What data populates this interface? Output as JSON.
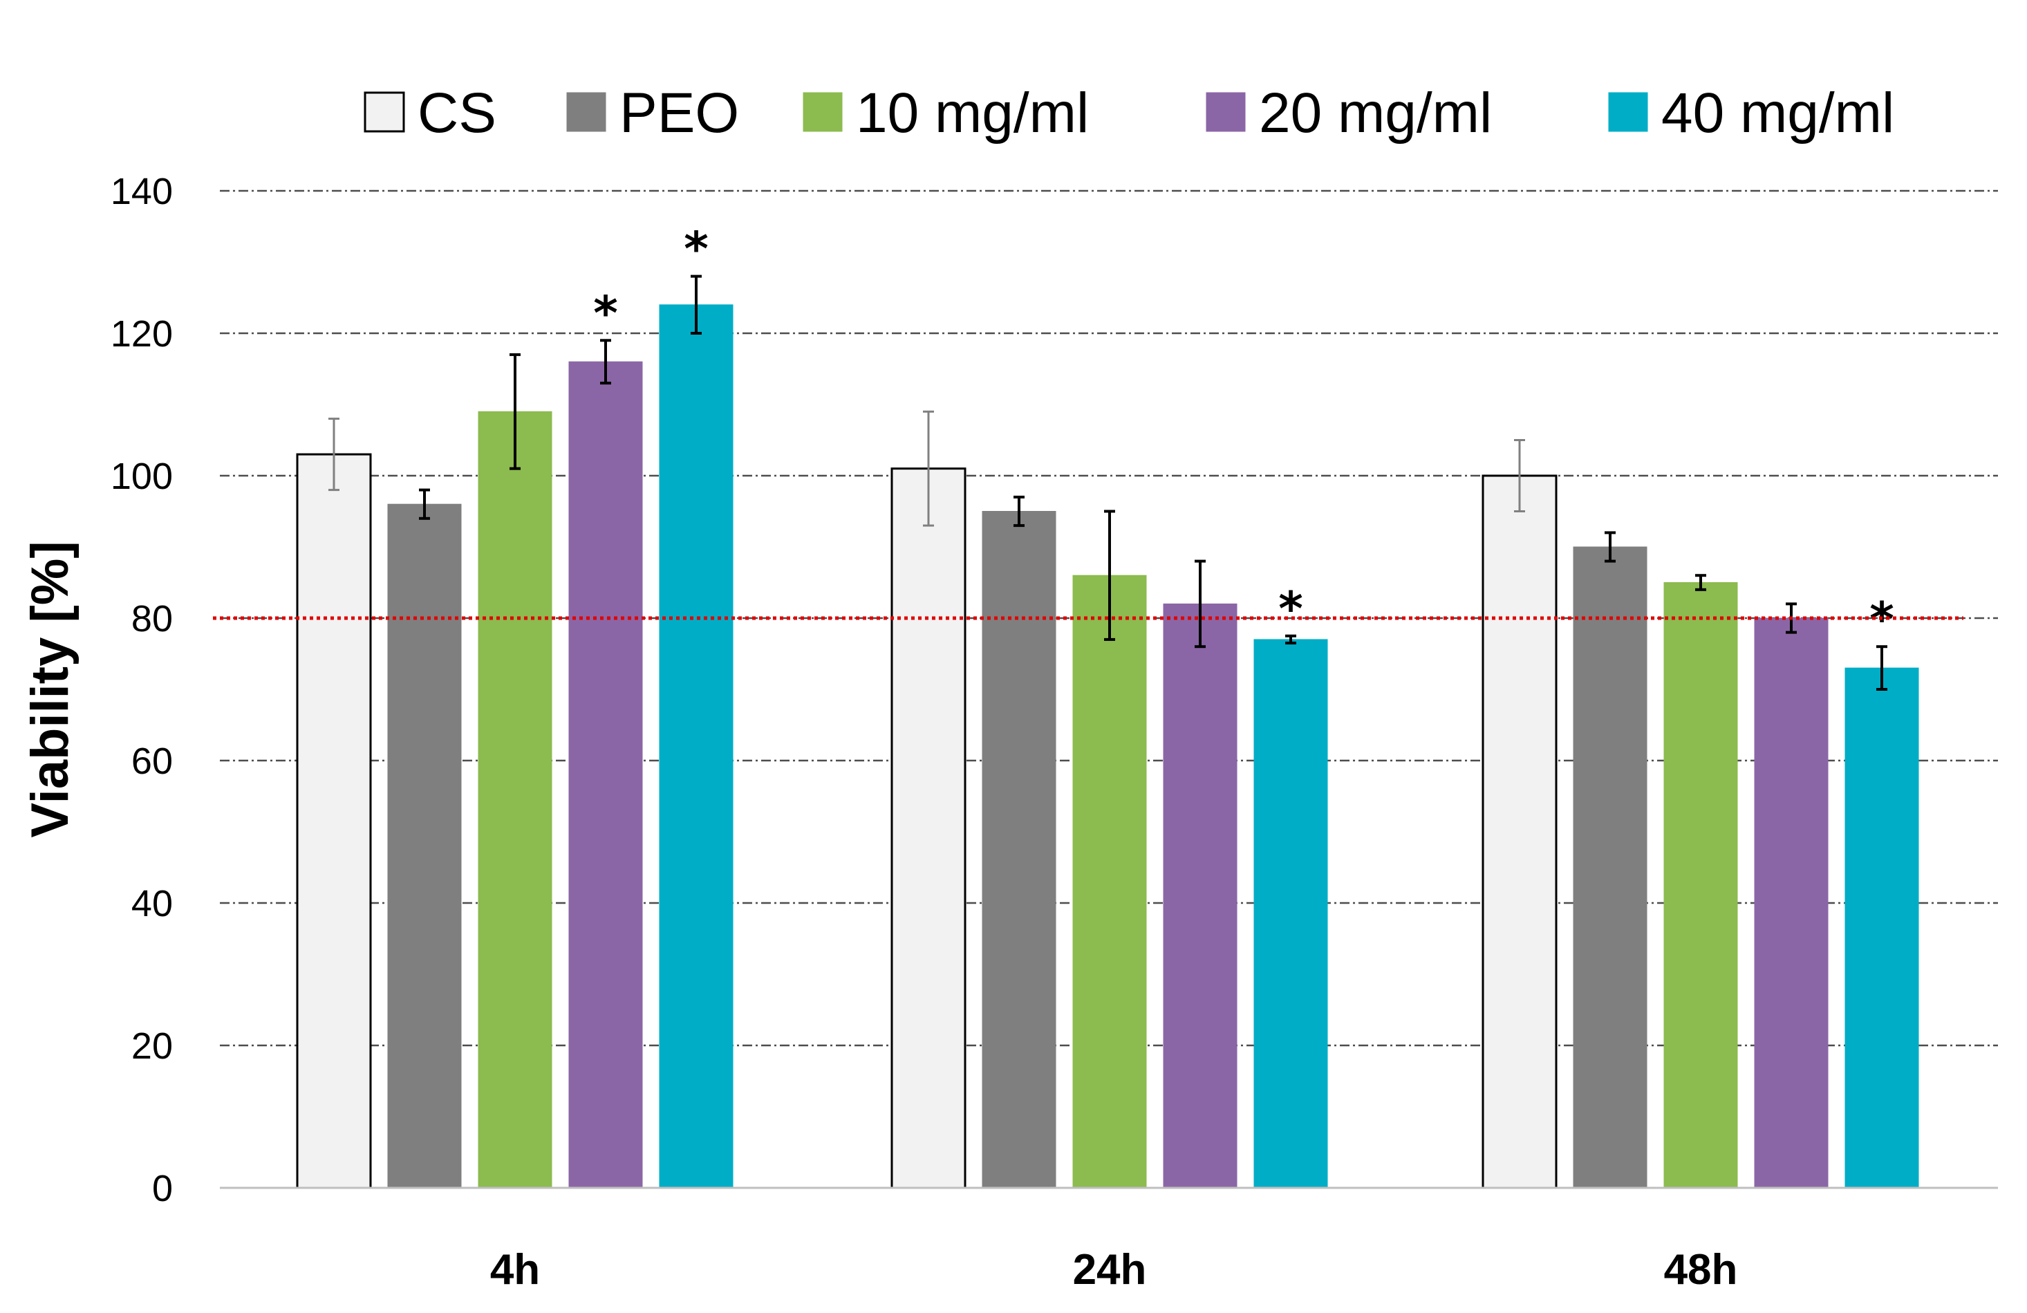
{
  "chart_data": {
    "type": "bar",
    "title": "",
    "xlabel": "",
    "ylabel": "Viability [%]",
    "ylim": [
      0,
      140
    ],
    "yticks": [
      0,
      20,
      40,
      60,
      80,
      100,
      120,
      140
    ],
    "grid": true,
    "legend_position": "top",
    "categories": [
      "4h",
      "24h",
      "48h"
    ],
    "series": [
      {
        "name": "CS",
        "color": "#f2f2f2",
        "edge": "#000000",
        "values": [
          103,
          101,
          100
        ],
        "errors": [
          5,
          8,
          5
        ],
        "significant": [
          false,
          false,
          false
        ]
      },
      {
        "name": "PEO",
        "color": "#7f7f7f",
        "edge": "#7f7f7f",
        "values": [
          96,
          95,
          90
        ],
        "errors": [
          2,
          2,
          2
        ],
        "significant": [
          false,
          false,
          false
        ]
      },
      {
        "name": "10 mg/ml",
        "color": "#8cbb4f",
        "edge": "#8cbb4f",
        "values": [
          109,
          86,
          85
        ],
        "errors": [
          8,
          9,
          1
        ],
        "significant": [
          false,
          false,
          false
        ]
      },
      {
        "name": "20 mg/ml",
        "color": "#8b66a6",
        "edge": "#8b66a6",
        "values": [
          116,
          82,
          80
        ],
        "errors": [
          3,
          6,
          2
        ],
        "significant": [
          true,
          false,
          false
        ]
      },
      {
        "name": "40 mg/ml",
        "color": "#00adc6",
        "edge": "#00adc6",
        "values": [
          124,
          77,
          73
        ],
        "errors": [
          4,
          0.5,
          3
        ],
        "significant": [
          true,
          true,
          true
        ]
      }
    ],
    "significance_marker": "*",
    "reference_line": {
      "value": 80,
      "color": "#e00000",
      "style": "dotted"
    }
  }
}
